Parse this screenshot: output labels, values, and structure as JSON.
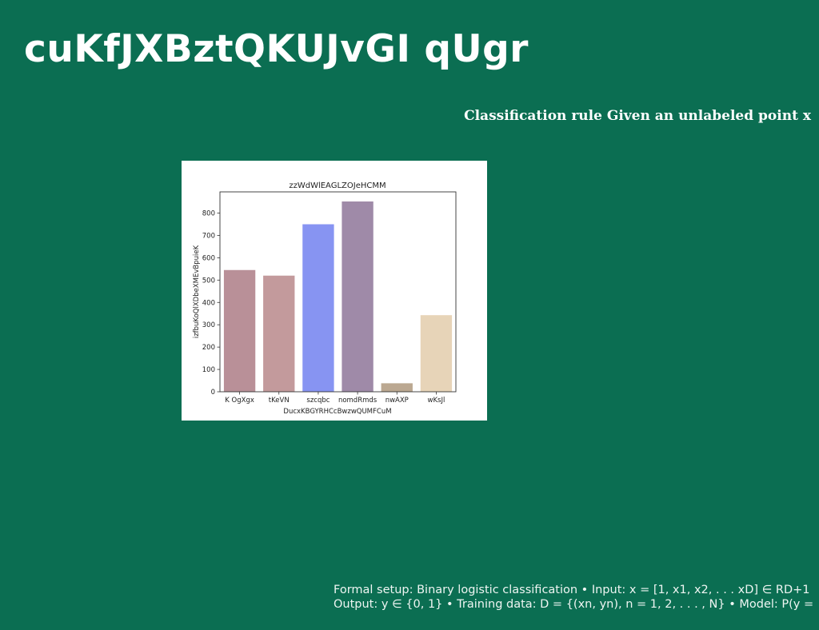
{
  "slide": {
    "title": "cuKfJXBztQKUJvGI qUgr",
    "subheading": "Classification rule Given an unlabeled point x",
    "footer": {
      "line1": "Formal setup: Binary logistic classification • Input: x = [1, x1, x2, . . . xD] ∈ RD+1",
      "line2": "Output: y ∈ {0, 1} • Training data: D = {(xn, yn), n = 1, 2, . . . , N} • Model: P(y ="
    }
  },
  "chart_data": {
    "type": "bar",
    "title": "zzWdWlEAGLZOJeHCMM",
    "xlabel": "DucxKBGYRHCcBwzwQUMFCuM",
    "ylabel": "izfbuKoQlXDbeXMEvBpuieK",
    "categories": [
      "K OgXgx",
      "tKeVN",
      "szcqbc",
      "nomdRmds",
      "nwAXP",
      "wKsJl"
    ],
    "values": [
      545,
      520,
      750,
      852,
      38,
      343
    ],
    "colors": [
      "#b99098",
      "#c39a9c",
      "#8794f2",
      "#9f8aa8",
      "#bba891",
      "#e7d4b8"
    ],
    "ylim": [
      0,
      895
    ],
    "yticks": [
      0,
      100,
      200,
      300,
      400,
      500,
      600,
      700,
      800
    ],
    "grid": false,
    "legend": "none"
  }
}
